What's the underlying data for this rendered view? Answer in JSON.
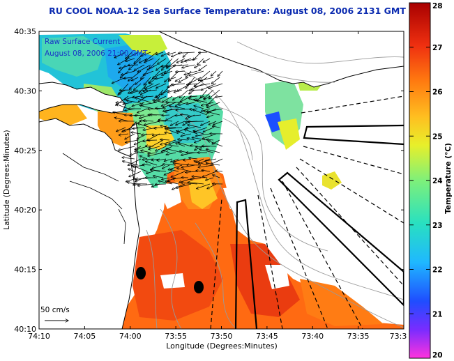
{
  "title": "RU COOL  NOAA-12  Sea Surface Temperature:  August 08, 2006 2131 GMT",
  "legend_annotation": {
    "line1": "Raw Surface Current",
    "line2": "August 08, 2006 21:00 GMT"
  },
  "scale_label": "50 cm/s",
  "axes": {
    "x_label": "Longitude (Degrees:Minutes)",
    "y_label": "Latitude (Degrees:Minutes)",
    "x_ticks": [
      "74:10",
      "74:05",
      "74:00",
      "73:55",
      "73:50",
      "73:45",
      "73:40",
      "73:35",
      "73:3"
    ],
    "y_ticks": [
      "40:35",
      "40:30",
      "40:25",
      "40:20",
      "40:15",
      "40:10"
    ]
  },
  "colorbar": {
    "label": "Temperature (°C)",
    "ticks": [
      "28",
      "27",
      "26",
      "25",
      "24",
      "23",
      "22",
      "21",
      "20"
    ],
    "min": 20,
    "max": 28,
    "colors": [
      "#ff33dd",
      "#7a2cff",
      "#1f4dff",
      "#1fb8ff",
      "#29e0c0",
      "#7ef07a",
      "#e8ef2a",
      "#ffbe20",
      "#ff7a10",
      "#ef3010",
      "#a80000"
    ]
  },
  "colors": {
    "title": "#0b2bb0",
    "annotation": "#1a36c8",
    "land": "#ffffff",
    "coast": "#000000",
    "bathymetry": "#9a9a9a"
  }
}
